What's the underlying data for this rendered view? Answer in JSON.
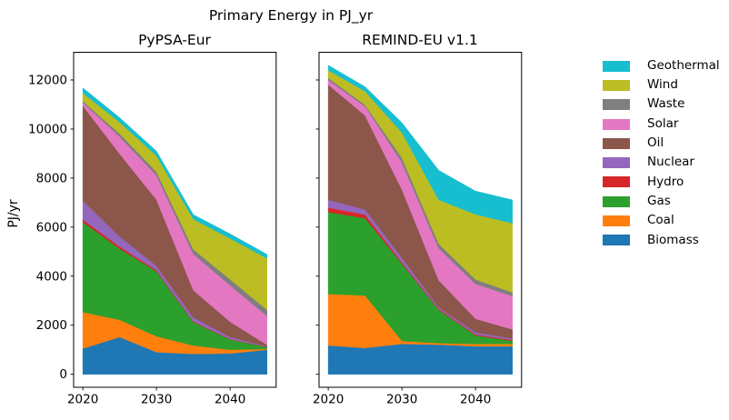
{
  "figure": {
    "title": "Primary Energy in PJ_yr",
    "background_color": "#ffffff",
    "spine_color": "#000000"
  },
  "legend": {
    "position": "right",
    "frame": false,
    "entries": [
      {
        "label": "Geothermal",
        "color": "#17becf"
      },
      {
        "label": "Wind",
        "color": "#bcbd22"
      },
      {
        "label": "Waste",
        "color": "#7f7f7f"
      },
      {
        "label": "Solar",
        "color": "#e377c2"
      },
      {
        "label": "Oil",
        "color": "#8c564b"
      },
      {
        "label": "Nuclear",
        "color": "#9467bd"
      },
      {
        "label": "Hydro",
        "color": "#d62728"
      },
      {
        "label": "Gas",
        "color": "#2ca02c"
      },
      {
        "label": "Coal",
        "color": "#ff7f0e"
      },
      {
        "label": "Biomass",
        "color": "#1f77b4"
      }
    ]
  },
  "chart_data": [
    {
      "type": "area",
      "title": "PyPSA-Eur",
      "ylabel": "PJ/yr",
      "xlabel": "",
      "grid": false,
      "x": [
        2020,
        2025,
        2030,
        2035,
        2040,
        2045
      ],
      "xticks": [
        2020,
        2030,
        2040
      ],
      "yticks": [
        0,
        2000,
        4000,
        6000,
        8000,
        10000,
        12000
      ],
      "xlim": [
        2018.75,
        2046.25
      ],
      "ylim": [
        -530,
        13130
      ],
      "stack_order": "bottom-to-top",
      "series": [
        {
          "name": "Biomass",
          "color": "#1f77b4",
          "values": [
            1050,
            1520,
            900,
            830,
            850,
            1000
          ]
        },
        {
          "name": "Coal",
          "color": "#ff7f0e",
          "values": [
            1490,
            700,
            650,
            345,
            150,
            30
          ]
        },
        {
          "name": "Gas",
          "color": "#2ca02c",
          "values": [
            3670,
            2900,
            2650,
            950,
            420,
            80
          ]
        },
        {
          "name": "Hydro",
          "color": "#d62728",
          "values": [
            100,
            90,
            50,
            30,
            20,
            10
          ]
        },
        {
          "name": "Nuclear",
          "color": "#9467bd",
          "values": [
            770,
            410,
            170,
            160,
            80,
            20
          ]
        },
        {
          "name": "Oil",
          "color": "#8c564b",
          "values": [
            3870,
            3370,
            2700,
            1110,
            620,
            60
          ]
        },
        {
          "name": "Solar",
          "color": "#e377c2",
          "values": [
            130,
            700,
            990,
            1480,
            1480,
            1180
          ]
        },
        {
          "name": "Waste",
          "color": "#7f7f7f",
          "values": [
            60,
            120,
            150,
            190,
            250,
            250
          ]
        },
        {
          "name": "Wind",
          "color": "#bcbd22",
          "values": [
            330,
            470,
            650,
            1230,
            1670,
            2100
          ]
        },
        {
          "name": "Geothermal",
          "color": "#17becf",
          "values": [
            210,
            185,
            190,
            185,
            185,
            160
          ]
        }
      ]
    },
    {
      "type": "area",
      "title": "REMIND-EU v1.1",
      "ylabel": "",
      "xlabel": "",
      "grid": false,
      "x": [
        2020,
        2025,
        2030,
        2035,
        2040,
        2045
      ],
      "xticks": [
        2020,
        2030,
        2040
      ],
      "yticks": [
        0,
        2000,
        4000,
        6000,
        8000,
        10000,
        12000
      ],
      "xlim": [
        2018.75,
        2046.25
      ],
      "ylim": [
        -530,
        13130
      ],
      "stack_order": "bottom-to-top",
      "series": [
        {
          "name": "Biomass",
          "color": "#1f77b4",
          "values": [
            1175,
            1075,
            1240,
            1210,
            1140,
            1140
          ]
        },
        {
          "name": "Coal",
          "color": "#ff7f0e",
          "values": [
            2100,
            2140,
            120,
            60,
            100,
            100
          ]
        },
        {
          "name": "Gas",
          "color": "#2ca02c",
          "values": [
            3340,
            3150,
            3150,
            1350,
            345,
            120
          ]
        },
        {
          "name": "Hydro",
          "color": "#d62728",
          "values": [
            185,
            150,
            60,
            40,
            40,
            40
          ]
        },
        {
          "name": "Nuclear",
          "color": "#9467bd",
          "values": [
            310,
            210,
            185,
            70,
            85,
            60
          ]
        },
        {
          "name": "Oil",
          "color": "#8c564b",
          "values": [
            4700,
            3830,
            2780,
            1100,
            550,
            370
          ]
        },
        {
          "name": "Solar",
          "color": "#e377c2",
          "values": [
            190,
            370,
            1110,
            1300,
            1420,
            1360
          ]
        },
        {
          "name": "Waste",
          "color": "#7f7f7f",
          "values": [
            90,
            60,
            185,
            185,
            185,
            150
          ]
        },
        {
          "name": "Wind",
          "color": "#bcbd22",
          "values": [
            310,
            555,
            1030,
            1800,
            2655,
            2820
          ]
        },
        {
          "name": "Geothermal",
          "color": "#17becf",
          "values": [
            200,
            185,
            400,
            1200,
            950,
            950
          ]
        }
      ]
    }
  ]
}
